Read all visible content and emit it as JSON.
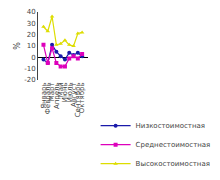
{
  "chart_data": {
    "type": "line",
    "categories": [
      "Январь",
      "Февраль",
      "Март",
      "Апрель",
      "Май",
      "Июнь",
      "Июль",
      "Август",
      "Сентябрь",
      "Октябрь"
    ],
    "series": [
      {
        "name": "Низкостоимостная",
        "color": "#1a1aaa",
        "marker": "circle",
        "line_style": "solid",
        "values": [
          -2,
          -5,
          11,
          5,
          1,
          -2,
          4,
          2,
          4,
          1
        ]
      },
      {
        "name": "Среднестоимостная",
        "color": "#dd00bb",
        "marker": "square",
        "line_style": "solid",
        "values": [
          11,
          -5,
          8,
          -5,
          -8,
          -8,
          -1,
          1,
          -1,
          3
        ]
      },
      {
        "name": "Высокостоимостная",
        "color": "#dddd00",
        "marker": "triangle",
        "line_style": "solid",
        "values": [
          27,
          23,
          36,
          11,
          12,
          15,
          11,
          10,
          21,
          22
        ]
      }
    ],
    "ylabel": "%",
    "ylim": [
      -20,
      40
    ],
    "yticks": [
      -20,
      -10,
      0,
      10,
      20,
      30,
      40
    ],
    "grid": false,
    "legend": "lower right"
  }
}
